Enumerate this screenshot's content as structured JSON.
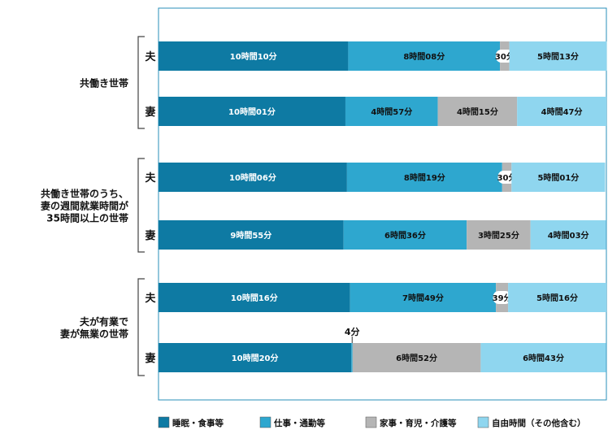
{
  "colors": {
    "sleep_meal": "#0e7aa3",
    "work": "#2ea7cf",
    "housework": "#b5b5b5",
    "free": "#8fd6ef",
    "text_dark": "#111111",
    "text_light": "#ffffff",
    "frame": "#2a8fb8"
  },
  "chart_data": {
    "type": "bar",
    "orientation": "horizontal-stacked",
    "x_unit": "minutes",
    "xlim": [
      0,
      1440
    ],
    "series": [
      {
        "name": "睡眠・食事等",
        "color_key": "sleep_meal"
      },
      {
        "name": "仕事・通勤等",
        "color_key": "work"
      },
      {
        "name": "家事・育児・介護等",
        "color_key": "housework"
      },
      {
        "name": "自由時間（その他含む）",
        "color_key": "free"
      }
    ],
    "groups": [
      {
        "label_lines": [
          "共働き世帯"
        ],
        "rows": [
          {
            "person": "夫",
            "segments": [
              {
                "series": 0,
                "minutes": 610,
                "label": "10時間10分"
              },
              {
                "series": 1,
                "minutes": 488,
                "label": "8時間08分"
              },
              {
                "series": 2,
                "minutes": 30,
                "label": "30分"
              },
              {
                "series": 3,
                "minutes": 313,
                "label": "5時間13分"
              }
            ]
          },
          {
            "person": "妻",
            "segments": [
              {
                "series": 0,
                "minutes": 601,
                "label": "10時間01分"
              },
              {
                "series": 1,
                "minutes": 297,
                "label": "4時間57分"
              },
              {
                "series": 2,
                "minutes": 255,
                "label": "4時間15分"
              },
              {
                "series": 3,
                "minutes": 287,
                "label": "4時間47分"
              }
            ]
          }
        ]
      },
      {
        "label_lines": [
          "共働き世帯のうち、",
          "妻の週間就業時間が",
          "35時間以上の世帯"
        ],
        "rows": [
          {
            "person": "夫",
            "segments": [
              {
                "series": 0,
                "minutes": 606,
                "label": "10時間06分"
              },
              {
                "series": 1,
                "minutes": 499,
                "label": "8時間19分"
              },
              {
                "series": 2,
                "minutes": 30,
                "label": "30分"
              },
              {
                "series": 3,
                "minutes": 301,
                "label": "5時間01分"
              }
            ]
          },
          {
            "person": "妻",
            "segments": [
              {
                "series": 0,
                "minutes": 595,
                "label": "9時間55分"
              },
              {
                "series": 1,
                "minutes": 396,
                "label": "6時間36分"
              },
              {
                "series": 2,
                "minutes": 205,
                "label": "3時間25分"
              },
              {
                "series": 3,
                "minutes": 243,
                "label": "4時間03分"
              }
            ]
          }
        ]
      },
      {
        "label_lines": [
          "夫が有業で",
          "妻が無業の世帯"
        ],
        "rows": [
          {
            "person": "夫",
            "segments": [
              {
                "series": 0,
                "minutes": 616,
                "label": "10時間16分"
              },
              {
                "series": 1,
                "minutes": 469,
                "label": "7時間49分"
              },
              {
                "series": 2,
                "minutes": 39,
                "label": "39分"
              },
              {
                "series": 3,
                "minutes": 316,
                "label": "5時間16分"
              }
            ]
          },
          {
            "person": "妻",
            "segments": [
              {
                "series": 0,
                "minutes": 620,
                "label": "10時間20分"
              },
              {
                "series": 1,
                "minutes": 4,
                "label": "4分",
                "callout": true
              },
              {
                "series": 2,
                "minutes": 412,
                "label": "6時間52分"
              },
              {
                "series": 3,
                "minutes": 403,
                "label": "6時間43分"
              }
            ]
          }
        ]
      }
    ],
    "legend": [
      "睡眠・食事等",
      "仕事・通勤等",
      "家事・育児・介護等",
      "自由時間（その他含む）"
    ],
    "legend_position": "bottom"
  }
}
